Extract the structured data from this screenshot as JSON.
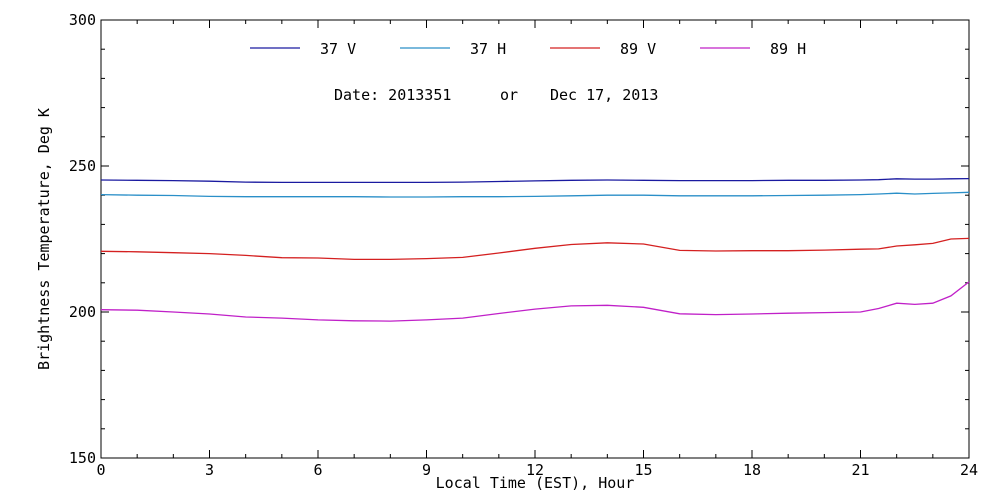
{
  "chart_data": {
    "type": "line",
    "xlabel": "Local Time (EST), Hour",
    "ylabel": "Brightness Temperature, Deg K",
    "xlim": [
      0,
      24
    ],
    "ylim": [
      150,
      300
    ],
    "xticks": [
      0,
      3,
      6,
      9,
      12,
      15,
      18,
      21,
      24
    ],
    "xtick_labels": [
      "0",
      "3",
      "6",
      "9",
      "12",
      "15",
      "18",
      "21",
      "24"
    ],
    "yticks": [
      150,
      200,
      250,
      300
    ],
    "ytick_labels": [
      "150",
      "200",
      "250",
      "300"
    ],
    "grid": false,
    "legend_position": "top-center",
    "date_text": "Date: 2013351",
    "or_text": "or",
    "date_long": "Dec 17, 2013",
    "x": [
      0,
      1,
      2,
      3,
      4,
      5,
      6,
      7,
      8,
      9,
      10,
      11,
      12,
      13,
      14,
      15,
      16,
      17,
      18,
      19,
      20,
      21,
      21.5,
      22,
      22.5,
      23,
      23.5,
      24
    ],
    "series": [
      {
        "name": "37 V",
        "color": "#1a1aa0",
        "values": [
          245.2,
          245.1,
          245.0,
          244.8,
          244.5,
          244.4,
          244.4,
          244.4,
          244.4,
          244.4,
          244.5,
          244.7,
          244.9,
          245.1,
          245.2,
          245.1,
          245.0,
          245.0,
          245.0,
          245.1,
          245.1,
          245.2,
          245.3,
          245.6,
          245.5,
          245.5,
          245.6,
          245.7
        ]
      },
      {
        "name": "37 H",
        "color": "#2a8fc8",
        "values": [
          240.2,
          240.0,
          239.9,
          239.6,
          239.5,
          239.5,
          239.5,
          239.5,
          239.4,
          239.4,
          239.5,
          239.5,
          239.6,
          239.8,
          240.0,
          240.0,
          239.8,
          239.8,
          239.8,
          239.9,
          240.0,
          240.2,
          240.4,
          240.7,
          240.4,
          240.6,
          240.8,
          241.0
        ]
      },
      {
        "name": "89 V",
        "color": "#d42020",
        "values": [
          220.8,
          220.6,
          220.3,
          220.0,
          219.4,
          218.6,
          218.5,
          218.0,
          218.0,
          218.3,
          218.7,
          220.2,
          221.8,
          223.1,
          223.7,
          223.3,
          221.1,
          220.9,
          221.0,
          221.0,
          221.2,
          221.5,
          221.6,
          222.6,
          223.0,
          223.5,
          225.0,
          225.2
        ]
      },
      {
        "name": "89 H",
        "color": "#c020c8",
        "values": [
          200.8,
          200.6,
          200.0,
          199.3,
          198.3,
          197.9,
          197.3,
          197.0,
          196.9,
          197.3,
          197.9,
          199.5,
          201.0,
          202.1,
          202.3,
          201.6,
          199.4,
          199.1,
          199.3,
          199.6,
          199.8,
          200.0,
          201.2,
          203.0,
          202.6,
          203.0,
          205.5,
          210.3
        ]
      }
    ]
  }
}
